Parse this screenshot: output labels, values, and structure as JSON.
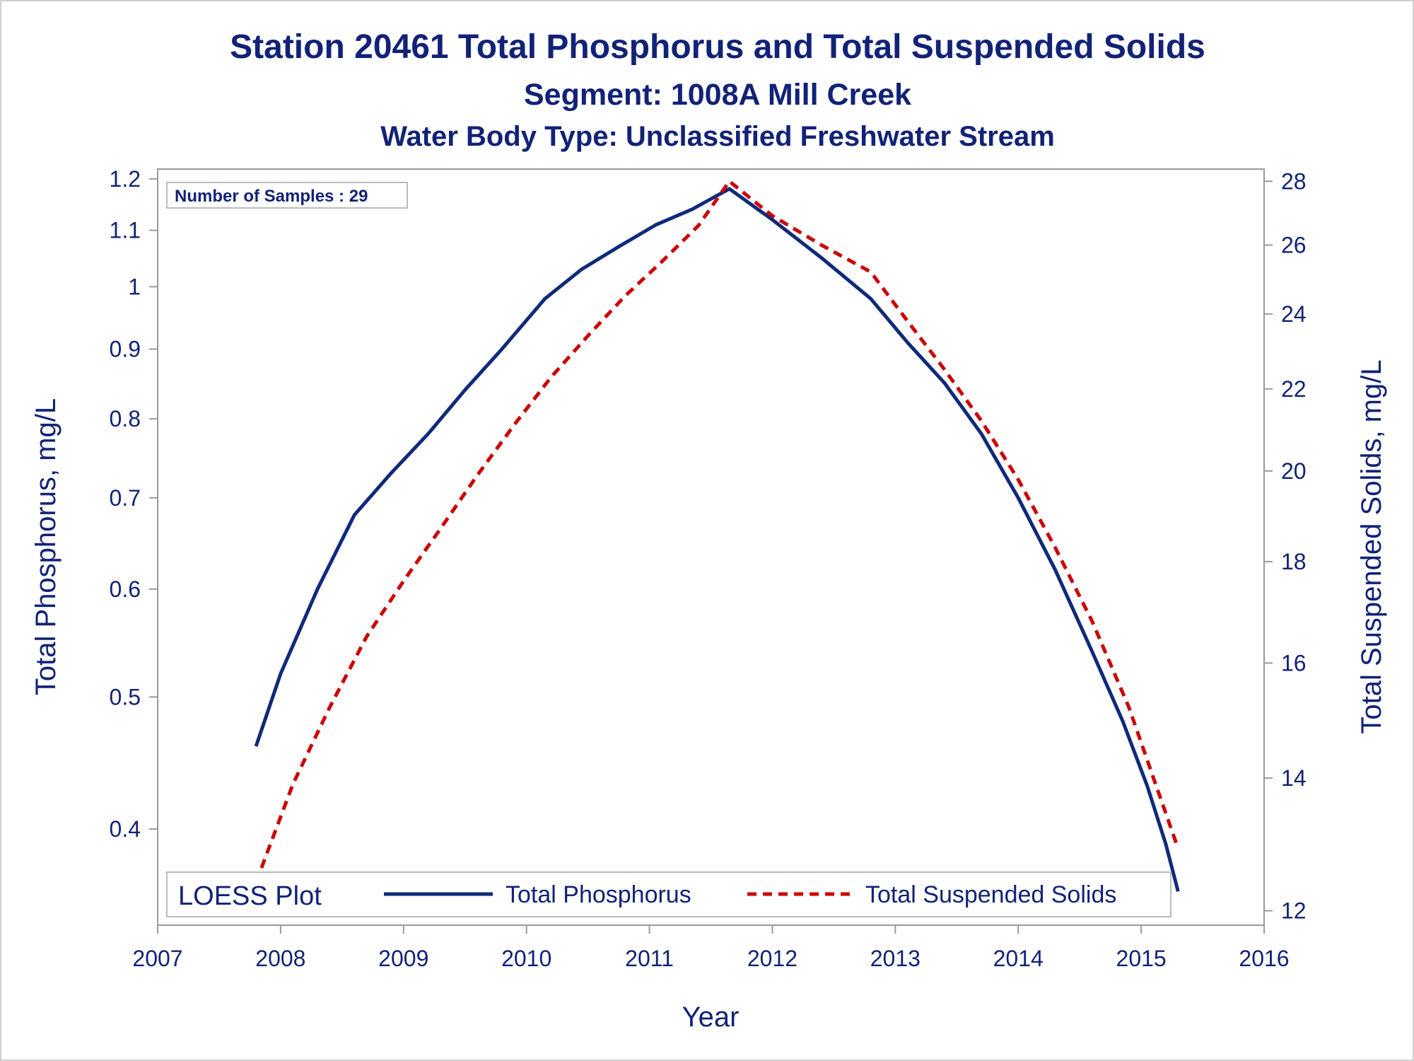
{
  "titles": {
    "line1": "Station 20461  Total Phosphorus and Total Suspended Solids",
    "line2": "Segment: 1008A  Mill Creek",
    "line3": "Water Body Type: Unclassified Freshwater Stream"
  },
  "inset": {
    "label": "Number of Samples : 29"
  },
  "legend": {
    "title": "LOESS Plot",
    "entries": [
      "Total Phosphorus",
      "Total Suspended Solids"
    ]
  },
  "colors": {
    "text": "#112277",
    "series_tp": "#0f2a7a",
    "series_tss": "#cc0000",
    "frame": "#9a9a9a"
  },
  "chart_data": {
    "type": "line",
    "xlabel": "Year",
    "ylabel": "Total Phosphorus, mg/L",
    "y2label": "Total Suspended Solids, mg/L",
    "xlim": [
      2007,
      2016
    ],
    "ylim": [
      0.34,
      1.22
    ],
    "y2lim": [
      11.8,
      28.4
    ],
    "yscale": "log",
    "y2scale": "log",
    "x_ticks": [
      2007,
      2008,
      2009,
      2010,
      2011,
      2012,
      2013,
      2014,
      2015,
      2016
    ],
    "y_ticks": [
      0.4,
      0.5,
      0.6,
      0.7,
      0.8,
      0.9,
      1,
      1.1,
      1.2
    ],
    "y_tick_labels": [
      "0.4",
      "0.5",
      "0.6",
      "0.7",
      "0.8",
      "0.9",
      "1",
      "1.1",
      "1.2"
    ],
    "y2_ticks": [
      12,
      14,
      16,
      18,
      20,
      22,
      24,
      26,
      28
    ],
    "grid": false,
    "legend_position": "bottom-inside",
    "series": [
      {
        "name": "Total Phosphorus",
        "axis": "left",
        "style": "solid",
        "x": [
          2007.8,
          2008.0,
          2008.3,
          2008.6,
          2008.9,
          2009.2,
          2009.5,
          2009.8,
          2010.15,
          2010.45,
          2010.75,
          2011.05,
          2011.35,
          2011.65,
          2012.0,
          2012.4,
          2012.8,
          2013.1,
          2013.4,
          2013.7,
          2014.0,
          2014.3,
          2014.6,
          2014.85,
          2015.05,
          2015.2,
          2015.3
        ],
        "values": [
          0.46,
          0.52,
          0.6,
          0.68,
          0.73,
          0.78,
          0.84,
          0.9,
          0.98,
          1.03,
          1.07,
          1.11,
          1.14,
          1.18,
          1.12,
          1.05,
          0.98,
          0.91,
          0.85,
          0.78,
          0.7,
          0.62,
          0.54,
          0.48,
          0.43,
          0.39,
          0.36
        ]
      },
      {
        "name": "Total Suspended Solids",
        "axis": "right",
        "style": "dashed",
        "x": [
          2007.8,
          2008.1,
          2008.4,
          2008.7,
          2009.0,
          2009.3,
          2009.6,
          2009.9,
          2010.2,
          2010.5,
          2010.8,
          2011.1,
          2011.4,
          2011.65,
          2012.0,
          2012.4,
          2012.8,
          2013.1,
          2013.4,
          2013.7,
          2014.0,
          2014.3,
          2014.6,
          2014.9,
          2015.1,
          2015.3
        ],
        "values": [
          12.4,
          13.9,
          15.2,
          16.5,
          17.6,
          18.7,
          19.9,
          21.1,
          22.3,
          23.4,
          24.5,
          25.5,
          26.6,
          28.0,
          26.9,
          26.0,
          25.2,
          23.8,
          22.5,
          21.2,
          19.8,
          18.3,
          16.8,
          15.2,
          14.0,
          12.9
        ]
      }
    ]
  }
}
